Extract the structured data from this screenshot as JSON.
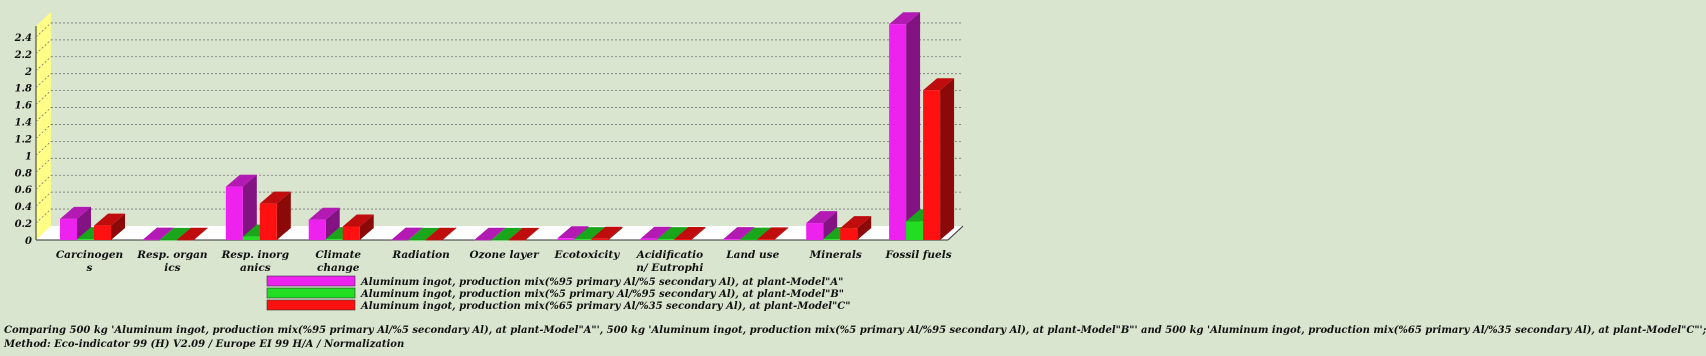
{
  "chart_data": {
    "type": "bar",
    "categories": [
      [
        "Carcinogen",
        "s"
      ],
      [
        "Resp. organ",
        "ics"
      ],
      [
        "Resp. inorg",
        "anics"
      ],
      [
        "Climate",
        "change"
      ],
      [
        "Radiation"
      ],
      [
        "Ozone layer"
      ],
      [
        "Ecotoxicity"
      ],
      [
        "Acidificatio",
        "n/ Eutrophi"
      ],
      [
        "Land use"
      ],
      [
        "Minerals"
      ],
      [
        "Fossil fuels"
      ]
    ],
    "series": [
      {
        "name": "Aluminum ingot, production mix(%95 primary Al/%5 secondary Al), at plant-Model\"A\"",
        "color": "#ee22ee",
        "values": [
          0.25,
          0.005,
          0.63,
          0.24,
          0.004,
          0.003,
          0.02,
          0.015,
          0.01,
          0.2,
          2.55
        ]
      },
      {
        "name": "Aluminum ingot, production mix(%5 primary Al/%95 secondary Al), at plant-Model\"B\"",
        "color": "#22dd22",
        "values": [
          0.01,
          0.001,
          0.04,
          0.01,
          0.001,
          0.001,
          0.01,
          0.01,
          0.005,
          0.01,
          0.22
        ]
      },
      {
        "name": "Aluminum ingot, production mix(%65 primary Al/%35 secondary Al), at plant-Model\"C\"",
        "color": "#ff1111",
        "values": [
          0.17,
          0.003,
          0.43,
          0.16,
          0.003,
          0.002,
          0.015,
          0.012,
          0.008,
          0.14,
          1.77
        ]
      }
    ],
    "yticks": [
      "0",
      "0.2",
      "0.4",
      "0.6",
      "0.8",
      "1",
      "1.2",
      "1.4",
      "1.6",
      "1.8",
      "2",
      "2.2",
      "2.4"
    ],
    "ylim": [
      0,
      2.6
    ],
    "grid": true,
    "legend_position": "bottom-center"
  },
  "footer": {
    "line1": "Comparing 500 kg 'Aluminum ingot, production mix(%95 primary Al/%5 secondary Al), at plant-Model\"A\"', 500 kg 'Aluminum ingot, production mix(%5 primary Al/%95 secondary Al), at plant-Model\"B\"' and 500 kg 'Aluminum ingot, production mix(%65 primary Al/%35 secondary Al), at plant-Model\"C\"';",
    "line2": "Method: Eco-indicator 99 (H) V2.09 / Europe EI 99 H/A / Normalization"
  }
}
